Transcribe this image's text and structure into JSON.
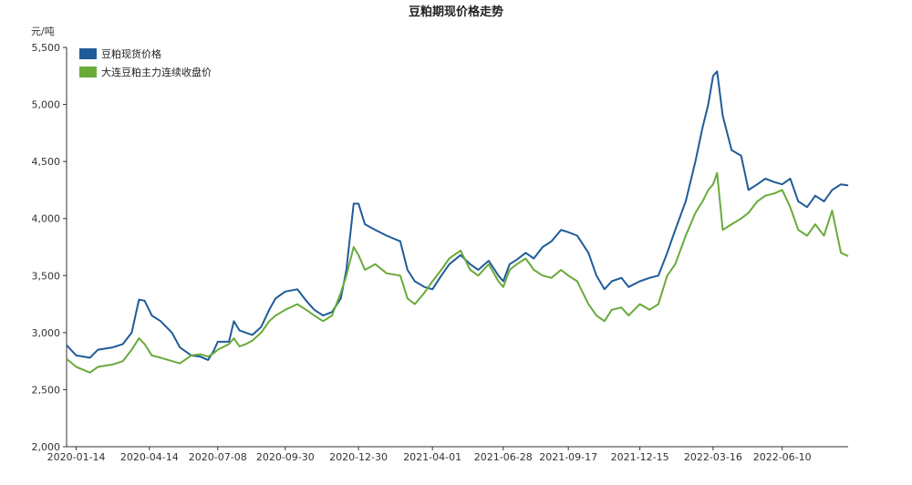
{
  "chart_data": {
    "type": "line",
    "title": "豆粕期现价格走势",
    "yunit": "元/吨",
    "ylim": [
      2000,
      5500
    ],
    "yticks": [
      2000,
      2500,
      3000,
      3500,
      4000,
      4500,
      5000,
      5500
    ],
    "ytick_labels": [
      "2,000",
      "2,500",
      "3,000",
      "3,500",
      "4,000",
      "4,500",
      "5,000",
      "5,500"
    ],
    "xlim": [
      "2020-01-02",
      "2022-08-31"
    ],
    "xtick_labels": [
      "2020-01-14",
      "2020-04-14",
      "2020-07-08",
      "2020-09-30",
      "2020-12-30",
      "2021-04-01",
      "2021-06-28",
      "2021-09-17",
      "2021-12-15",
      "2022-03-16",
      "2022-06-10"
    ],
    "grid": false,
    "legend_position": "top-left",
    "series": [
      {
        "name": "豆粕现货价格",
        "color": "#1f5c99",
        "points": [
          [
            "2020-01-02",
            2890
          ],
          [
            "2020-01-14",
            2800
          ],
          [
            "2020-01-31",
            2780
          ],
          [
            "2020-02-10",
            2850
          ],
          [
            "2020-02-28",
            2870
          ],
          [
            "2020-03-12",
            2900
          ],
          [
            "2020-03-23",
            3000
          ],
          [
            "2020-04-01",
            3290
          ],
          [
            "2020-04-08",
            3280
          ],
          [
            "2020-04-17",
            3150
          ],
          [
            "2020-04-28",
            3100
          ],
          [
            "2020-05-12",
            3000
          ],
          [
            "2020-05-22",
            2870
          ],
          [
            "2020-06-05",
            2800
          ],
          [
            "2020-06-16",
            2790
          ],
          [
            "2020-06-26",
            2760
          ],
          [
            "2020-07-03",
            2840
          ],
          [
            "2020-07-08",
            2920
          ],
          [
            "2020-07-22",
            2920
          ],
          [
            "2020-07-28",
            3100
          ],
          [
            "2020-08-04",
            3020
          ],
          [
            "2020-08-12",
            3000
          ],
          [
            "2020-08-20",
            2980
          ],
          [
            "2020-08-31",
            3050
          ],
          [
            "2020-09-10",
            3200
          ],
          [
            "2020-09-18",
            3300
          ],
          [
            "2020-09-30",
            3360
          ],
          [
            "2020-10-15",
            3380
          ],
          [
            "2020-10-26",
            3280
          ],
          [
            "2020-11-05",
            3200
          ],
          [
            "2020-11-16",
            3150
          ],
          [
            "2020-11-27",
            3180
          ],
          [
            "2020-12-08",
            3300
          ],
          [
            "2020-12-15",
            3550
          ],
          [
            "2020-12-24",
            4130
          ],
          [
            "2020-12-30",
            4130
          ],
          [
            "2021-01-07",
            3950
          ],
          [
            "2021-01-20",
            3900
          ],
          [
            "2021-02-03",
            3850
          ],
          [
            "2021-02-20",
            3800
          ],
          [
            "2021-03-01",
            3550
          ],
          [
            "2021-03-10",
            3450
          ],
          [
            "2021-03-22",
            3400
          ],
          [
            "2021-04-01",
            3380
          ],
          [
            "2021-04-12",
            3500
          ],
          [
            "2021-04-22",
            3600
          ],
          [
            "2021-05-06",
            3680
          ],
          [
            "2021-05-18",
            3600
          ],
          [
            "2021-05-28",
            3550
          ],
          [
            "2021-06-10",
            3630
          ],
          [
            "2021-06-22",
            3500
          ],
          [
            "2021-06-28",
            3450
          ],
          [
            "2021-07-06",
            3600
          ],
          [
            "2021-07-15",
            3640
          ],
          [
            "2021-07-26",
            3700
          ],
          [
            "2021-08-05",
            3650
          ],
          [
            "2021-08-16",
            3750
          ],
          [
            "2021-08-27",
            3800
          ],
          [
            "2021-09-08",
            3900
          ],
          [
            "2021-09-17",
            3880
          ],
          [
            "2021-09-28",
            3850
          ],
          [
            "2021-10-12",
            3700
          ],
          [
            "2021-10-22",
            3500
          ],
          [
            "2021-11-01",
            3380
          ],
          [
            "2021-11-10",
            3450
          ],
          [
            "2021-11-22",
            3480
          ],
          [
            "2021-12-01",
            3400
          ],
          [
            "2021-12-15",
            3450
          ],
          [
            "2021-12-27",
            3480
          ],
          [
            "2022-01-07",
            3500
          ],
          [
            "2022-01-18",
            3700
          ],
          [
            "2022-01-28",
            3900
          ],
          [
            "2022-02-10",
            4150
          ],
          [
            "2022-02-22",
            4500
          ],
          [
            "2022-03-03",
            4800
          ],
          [
            "2022-03-10",
            5000
          ],
          [
            "2022-03-16",
            5250
          ],
          [
            "2022-03-21",
            5290
          ],
          [
            "2022-03-28",
            4900
          ],
          [
            "2022-04-08",
            4600
          ],
          [
            "2022-04-20",
            4550
          ],
          [
            "2022-04-29",
            4250
          ],
          [
            "2022-05-10",
            4300
          ],
          [
            "2022-05-20",
            4350
          ],
          [
            "2022-05-31",
            4320
          ],
          [
            "2022-06-10",
            4300
          ],
          [
            "2022-06-20",
            4350
          ],
          [
            "2022-06-30",
            4150
          ],
          [
            "2022-07-11",
            4100
          ],
          [
            "2022-07-21",
            4200
          ],
          [
            "2022-08-01",
            4150
          ],
          [
            "2022-08-11",
            4250
          ],
          [
            "2022-08-22",
            4300
          ],
          [
            "2022-08-31",
            4290
          ]
        ]
      },
      {
        "name": "大连豆粕主力连续收盘价",
        "color": "#6aaa3a",
        "points": [
          [
            "2020-01-02",
            2770
          ],
          [
            "2020-01-14",
            2700
          ],
          [
            "2020-01-31",
            2650
          ],
          [
            "2020-02-10",
            2700
          ],
          [
            "2020-02-28",
            2720
          ],
          [
            "2020-03-12",
            2750
          ],
          [
            "2020-03-23",
            2850
          ],
          [
            "2020-04-01",
            2950
          ],
          [
            "2020-04-08",
            2900
          ],
          [
            "2020-04-17",
            2800
          ],
          [
            "2020-04-28",
            2780
          ],
          [
            "2020-05-12",
            2750
          ],
          [
            "2020-05-22",
            2730
          ],
          [
            "2020-06-05",
            2800
          ],
          [
            "2020-06-16",
            2810
          ],
          [
            "2020-06-26",
            2790
          ],
          [
            "2020-07-03",
            2820
          ],
          [
            "2020-07-08",
            2850
          ],
          [
            "2020-07-22",
            2900
          ],
          [
            "2020-07-28",
            2950
          ],
          [
            "2020-08-04",
            2880
          ],
          [
            "2020-08-12",
            2900
          ],
          [
            "2020-08-20",
            2930
          ],
          [
            "2020-08-31",
            3000
          ],
          [
            "2020-09-10",
            3100
          ],
          [
            "2020-09-18",
            3150
          ],
          [
            "2020-09-30",
            3200
          ],
          [
            "2020-10-15",
            3250
          ],
          [
            "2020-10-26",
            3200
          ],
          [
            "2020-11-05",
            3150
          ],
          [
            "2020-11-16",
            3100
          ],
          [
            "2020-11-27",
            3150
          ],
          [
            "2020-12-08",
            3350
          ],
          [
            "2020-12-15",
            3500
          ],
          [
            "2020-12-24",
            3750
          ],
          [
            "2020-12-30",
            3680
          ],
          [
            "2021-01-07",
            3550
          ],
          [
            "2021-01-20",
            3600
          ],
          [
            "2021-02-03",
            3520
          ],
          [
            "2021-02-20",
            3500
          ],
          [
            "2021-03-01",
            3300
          ],
          [
            "2021-03-10",
            3250
          ],
          [
            "2021-03-22",
            3350
          ],
          [
            "2021-04-01",
            3450
          ],
          [
            "2021-04-12",
            3550
          ],
          [
            "2021-04-22",
            3650
          ],
          [
            "2021-05-06",
            3720
          ],
          [
            "2021-05-18",
            3550
          ],
          [
            "2021-05-28",
            3500
          ],
          [
            "2021-06-10",
            3600
          ],
          [
            "2021-06-22",
            3450
          ],
          [
            "2021-06-28",
            3400
          ],
          [
            "2021-07-06",
            3550
          ],
          [
            "2021-07-15",
            3600
          ],
          [
            "2021-07-26",
            3650
          ],
          [
            "2021-08-05",
            3550
          ],
          [
            "2021-08-16",
            3500
          ],
          [
            "2021-08-27",
            3480
          ],
          [
            "2021-09-08",
            3550
          ],
          [
            "2021-09-17",
            3500
          ],
          [
            "2021-09-28",
            3450
          ],
          [
            "2021-10-12",
            3250
          ],
          [
            "2021-10-22",
            3150
          ],
          [
            "2021-11-01",
            3100
          ],
          [
            "2021-11-10",
            3200
          ],
          [
            "2021-11-22",
            3220
          ],
          [
            "2021-12-01",
            3150
          ],
          [
            "2021-12-15",
            3250
          ],
          [
            "2021-12-27",
            3200
          ],
          [
            "2022-01-07",
            3250
          ],
          [
            "2022-01-18",
            3500
          ],
          [
            "2022-01-28",
            3600
          ],
          [
            "2022-02-10",
            3850
          ],
          [
            "2022-02-22",
            4050
          ],
          [
            "2022-03-03",
            4150
          ],
          [
            "2022-03-10",
            4250
          ],
          [
            "2022-03-16",
            4300
          ],
          [
            "2022-03-21",
            4400
          ],
          [
            "2022-03-28",
            3900
          ],
          [
            "2022-04-08",
            3950
          ],
          [
            "2022-04-20",
            4000
          ],
          [
            "2022-04-29",
            4050
          ],
          [
            "2022-05-10",
            4150
          ],
          [
            "2022-05-20",
            4200
          ],
          [
            "2022-05-31",
            4220
          ],
          [
            "2022-06-10",
            4250
          ],
          [
            "2022-06-20",
            4100
          ],
          [
            "2022-06-30",
            3900
          ],
          [
            "2022-07-11",
            3850
          ],
          [
            "2022-07-21",
            3950
          ],
          [
            "2022-08-01",
            3850
          ],
          [
            "2022-08-11",
            4070
          ],
          [
            "2022-08-22",
            3700
          ],
          [
            "2022-08-31",
            3670
          ]
        ]
      }
    ]
  }
}
